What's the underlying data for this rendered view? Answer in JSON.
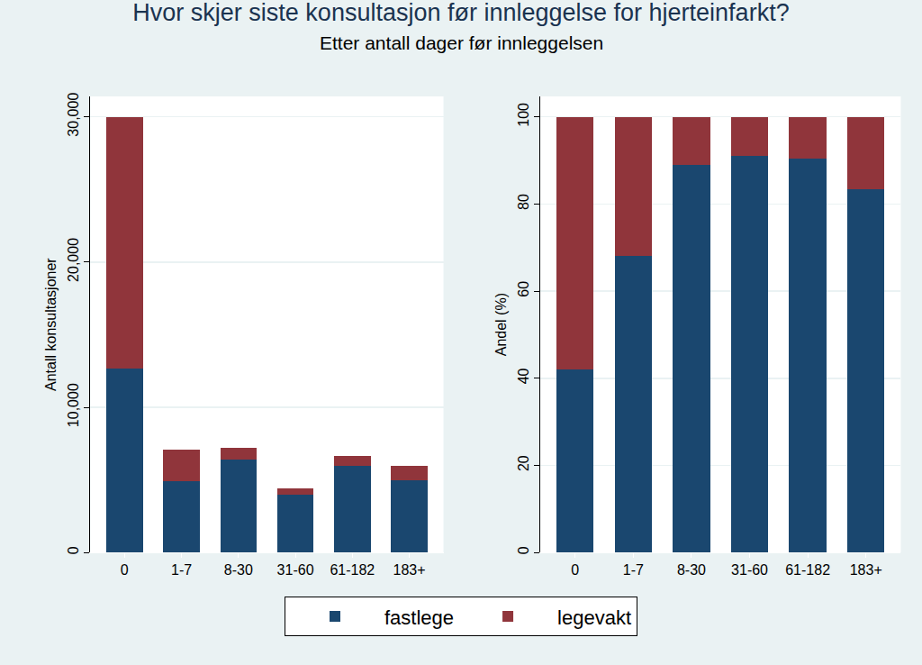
{
  "title": "Hvor skjer siste konsultasjon før innleggelse for hjerteinfarkt?",
  "subtitle": "Etter antall dager før innleggelsen",
  "chart_data": [
    {
      "type": "bar",
      "stacked": true,
      "grid": true,
      "legend": "bottom",
      "categories": [
        "0",
        "1-7",
        "8-30",
        "31-60",
        "61-182",
        "183+"
      ],
      "ylabel": "Antall konsultasjoner",
      "ylim": [
        0,
        31400
      ],
      "yticks": [
        0,
        {
          "value": 10000,
          "label": "10,000"
        },
        {
          "value": 20000,
          "label": "20,000"
        },
        {
          "value": 30000,
          "label": "30,000"
        }
      ],
      "series": [
        {
          "name": "fastlege",
          "color": "#1a476f",
          "values": [
            12700,
            4900,
            6400,
            4000,
            6000,
            5000
          ]
        },
        {
          "name": "legevakt",
          "color": "#90353b",
          "values": [
            17300,
            2200,
            800,
            450,
            650,
            1000
          ]
        }
      ]
    },
    {
      "type": "bar",
      "stacked": true,
      "grid": true,
      "legend": "bottom",
      "categories": [
        "0",
        "1-7",
        "8-30",
        "31-60",
        "61-182",
        "183+"
      ],
      "ylabel": "Andel (%)",
      "ylim": [
        0,
        104.7
      ],
      "yticks": [
        0,
        20,
        40,
        60,
        80,
        100
      ],
      "series": [
        {
          "name": "fastlege",
          "color": "#1a476f",
          "values": [
            42,
            68,
            89,
            91,
            90.5,
            83.5
          ]
        },
        {
          "name": "legevakt",
          "color": "#90353b",
          "values": [
            58,
            32,
            11,
            9,
            9.5,
            16.5
          ]
        }
      ]
    }
  ]
}
